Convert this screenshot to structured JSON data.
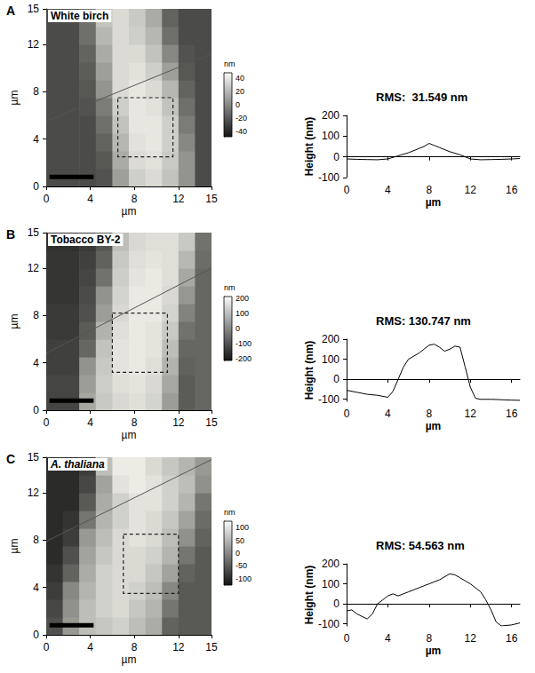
{
  "chart_data": [
    {
      "type": "heatmap",
      "panel_label": "A",
      "title": "White birch",
      "xlabel": "µm",
      "ylabel": "µm",
      "xlim": [
        0,
        15
      ],
      "ylim": [
        0,
        15
      ],
      "xticks": [
        0,
        4,
        8,
        12,
        15
      ],
      "yticks": [
        0,
        4,
        8,
        12,
        15
      ],
      "grid": false,
      "x_edges": [
        0,
        1.5,
        3,
        4.5,
        6,
        7.5,
        9,
        10.5,
        12,
        13.5,
        15
      ],
      "y_edges": [
        0,
        1.5,
        3,
        4.5,
        6,
        7.5,
        9,
        10.5,
        12,
        13.5,
        15
      ],
      "cells": [
        [
          -25,
          -25,
          -25,
          -22,
          10,
          30,
          35,
          25,
          5,
          -25
        ],
        [
          -25,
          -25,
          -25,
          -20,
          15,
          35,
          38,
          28,
          5,
          -25
        ],
        [
          -25,
          -25,
          -25,
          -15,
          20,
          38,
          40,
          30,
          0,
          -25
        ],
        [
          -25,
          -25,
          -25,
          -10,
          25,
          40,
          40,
          30,
          -5,
          -25
        ],
        [
          -25,
          -25,
          -22,
          -5,
          30,
          40,
          38,
          25,
          -10,
          -25
        ],
        [
          -25,
          -25,
          -20,
          5,
          35,
          40,
          35,
          20,
          -15,
          -25
        ],
        [
          -25,
          -25,
          -18,
          10,
          35,
          38,
          30,
          10,
          -20,
          -25
        ],
        [
          -25,
          -25,
          -15,
          15,
          35,
          35,
          25,
          0,
          -22,
          -25
        ],
        [
          -25,
          -25,
          -10,
          20,
          35,
          30,
          20,
          -10,
          -25,
          -25
        ],
        [
          -25,
          -25,
          -10,
          25,
          35,
          28,
          15,
          -15,
          -25,
          -25
        ]
      ],
      "colorbar": {
        "label": "nm",
        "range": [
          -48,
          48
        ],
        "ticks": [
          -40,
          -20,
          0,
          20,
          40
        ]
      },
      "dashed_box": [
        6.5,
        2.5,
        11.5,
        7.5
      ],
      "profile_line": [
        [
          0,
          5.5
        ],
        [
          15,
          11.2
        ]
      ],
      "scale_bar": [
        [
          0.3,
          0.8
        ],
        [
          4.3,
          0.8
        ]
      ]
    },
    {
      "type": "line",
      "title": "RMS:  31.549 nm",
      "xlabel": "µm",
      "ylabel": "Height (nm)",
      "xlim": [
        0,
        16.8
      ],
      "ylim": [
        -100,
        200
      ],
      "xticks": [
        0,
        4,
        8,
        12,
        16
      ],
      "yticks": [
        -100,
        0,
        100,
        200
      ],
      "grid": false,
      "color": "#000000",
      "marker": "none",
      "x": [
        0,
        1,
        2,
        3,
        4,
        5,
        6,
        7,
        7.5,
        8,
        8.5,
        9,
        10,
        11,
        12,
        13,
        14,
        15,
        16,
        16.8
      ],
      "values": [
        -10,
        -12,
        -13,
        -14,
        -10,
        5,
        20,
        40,
        50,
        65,
        55,
        45,
        25,
        10,
        -10,
        -14,
        -13,
        -12,
        -10,
        -8
      ]
    },
    {
      "type": "heatmap",
      "panel_label": "B",
      "title": "Tobacco BY-2",
      "xlabel": "µm",
      "ylabel": "µm",
      "xlim": [
        0,
        15
      ],
      "ylim": [
        0,
        15
      ],
      "xticks": [
        0,
        4,
        8,
        12,
        15
      ],
      "yticks": [
        0,
        4,
        8,
        12,
        15
      ],
      "grid": false,
      "x_edges": [
        0,
        1.5,
        3,
        4.5,
        6,
        7.5,
        9,
        10.5,
        12,
        13.5,
        15
      ],
      "y_edges": [
        0,
        1.5,
        3,
        4.5,
        6,
        7.5,
        9,
        10.5,
        12,
        13.5,
        15
      ],
      "cells": [
        [
          -120,
          -120,
          60,
          120,
          150,
          160,
          140,
          40,
          -80,
          -60
        ],
        [
          -120,
          -120,
          40,
          130,
          160,
          170,
          150,
          60,
          -80,
          -60
        ],
        [
          -130,
          -130,
          20,
          120,
          170,
          180,
          160,
          80,
          -70,
          -60
        ],
        [
          -130,
          -130,
          -60,
          110,
          170,
          180,
          170,
          100,
          -60,
          -60
        ],
        [
          -140,
          -140,
          -80,
          80,
          160,
          180,
          170,
          120,
          -40,
          -60
        ],
        [
          -140,
          -140,
          -100,
          40,
          150,
          180,
          180,
          140,
          -10,
          -60
        ],
        [
          -150,
          -150,
          -110,
          20,
          140,
          180,
          180,
          150,
          30,
          -60
        ],
        [
          -150,
          -150,
          -120,
          -40,
          130,
          170,
          180,
          160,
          60,
          -60
        ],
        [
          -150,
          -150,
          -130,
          -70,
          120,
          160,
          170,
          160,
          90,
          -50
        ],
        [
          -160,
          -160,
          -140,
          -90,
          100,
          150,
          160,
          160,
          120,
          -40
        ]
      ],
      "colorbar": {
        "label": "nm",
        "range": [
          -210,
          210
        ],
        "ticks": [
          -200,
          -100,
          0,
          100,
          200
        ]
      },
      "dashed_box": [
        6,
        3.2,
        11,
        8.2
      ],
      "profile_line": [
        [
          0,
          4.8
        ],
        [
          15,
          12
        ]
      ],
      "scale_bar": [
        [
          0.3,
          0.8
        ],
        [
          4.3,
          0.8
        ]
      ]
    },
    {
      "type": "line",
      "title": "RMS: 130.747 nm",
      "xlabel": "µm",
      "ylabel": "Height (nm)",
      "xlim": [
        0,
        16.8
      ],
      "ylim": [
        -110,
        200
      ],
      "xticks": [
        0,
        4,
        8,
        12,
        16
      ],
      "yticks": [
        -100,
        0,
        100,
        200
      ],
      "grid": false,
      "color": "#000000",
      "marker": "none",
      "x": [
        0,
        1,
        2,
        3,
        4,
        4.5,
        5,
        5.5,
        6,
        7,
        7.5,
        8,
        8.5,
        9,
        9.5,
        10,
        10.5,
        11,
        11.5,
        12,
        12.5,
        13,
        14,
        15,
        16,
        16.8
      ],
      "values": [
        -55,
        -65,
        -75,
        -80,
        -90,
        -60,
        0,
        60,
        100,
        130,
        150,
        170,
        175,
        160,
        140,
        150,
        165,
        160,
        60,
        -40,
        -95,
        -100,
        -100,
        -102,
        -104,
        -105
      ]
    },
    {
      "type": "heatmap",
      "panel_label": "C",
      "title": "A. thaliana",
      "xlabel": "µm",
      "ylabel": "µm",
      "xlim": [
        0,
        15
      ],
      "ylim": [
        0,
        15
      ],
      "xticks": [
        0,
        4,
        8,
        12,
        15
      ],
      "yticks": [
        0,
        4,
        8,
        12,
        15
      ],
      "grid": false,
      "x_edges": [
        0,
        1.5,
        3,
        4.5,
        6,
        7.5,
        9,
        10.5,
        12,
        13.5,
        15
      ],
      "y_edges": [
        0,
        1.5,
        3,
        4.5,
        6,
        7.5,
        9,
        10.5,
        12,
        13.5,
        15
      ],
      "cells": [
        [
          -60,
          20,
          60,
          70,
          80,
          60,
          40,
          -40,
          -50,
          -50
        ],
        [
          -70,
          10,
          60,
          80,
          90,
          70,
          50,
          -20,
          -50,
          -50
        ],
        [
          -80,
          0,
          50,
          80,
          90,
          80,
          60,
          0,
          -50,
          -50
        ],
        [
          -90,
          -40,
          40,
          80,
          90,
          90,
          70,
          30,
          -40,
          -50
        ],
        [
          -100,
          -60,
          30,
          70,
          90,
          90,
          80,
          50,
          -20,
          -50
        ],
        [
          -100,
          -80,
          20,
          60,
          90,
          100,
          90,
          60,
          10,
          -40
        ],
        [
          -100,
          -90,
          -20,
          50,
          80,
          100,
          90,
          70,
          30,
          -30
        ],
        [
          -100,
          -100,
          -50,
          40,
          80,
          100,
          100,
          80,
          50,
          -20
        ],
        [
          -100,
          -100,
          -70,
          30,
          100,
          110,
          100,
          80,
          60,
          10
        ],
        [
          -100,
          -100,
          -80,
          60,
          110,
          110,
          90,
          70,
          50,
          20
        ]
      ],
      "colorbar": {
        "label": "nm",
        "range": [
          -125,
          125
        ],
        "ticks": [
          -100,
          -50,
          0,
          50,
          100
        ]
      },
      "dashed_box": [
        7,
        3.5,
        12,
        8.5
      ],
      "profile_line": [
        [
          0,
          7.9
        ],
        [
          15,
          14.8
        ]
      ],
      "scale_bar": [
        [
          0.3,
          0.8
        ],
        [
          4.3,
          0.8
        ]
      ]
    },
    {
      "type": "line",
      "title": "RMS: 54.563 nm",
      "xlabel": "µm",
      "ylabel": "Height (nm)",
      "xlim": [
        0,
        16.8
      ],
      "ylim": [
        -110,
        200
      ],
      "xticks": [
        0,
        4,
        8,
        12,
        16
      ],
      "yticks": [
        -100,
        0,
        100,
        200
      ],
      "grid": false,
      "color": "#000000",
      "marker": "none",
      "x": [
        0,
        0.5,
        1,
        2,
        2.5,
        3,
        4,
        4.5,
        5,
        6,
        7,
        8,
        9,
        10,
        10.5,
        11,
        12,
        13,
        13.5,
        14,
        14.5,
        15,
        16,
        16.8
      ],
      "values": [
        -35,
        -30,
        -50,
        -75,
        -50,
        0,
        40,
        50,
        40,
        60,
        80,
        100,
        120,
        150,
        145,
        130,
        100,
        60,
        20,
        -30,
        -90,
        -110,
        -105,
        -95
      ]
    }
  ]
}
